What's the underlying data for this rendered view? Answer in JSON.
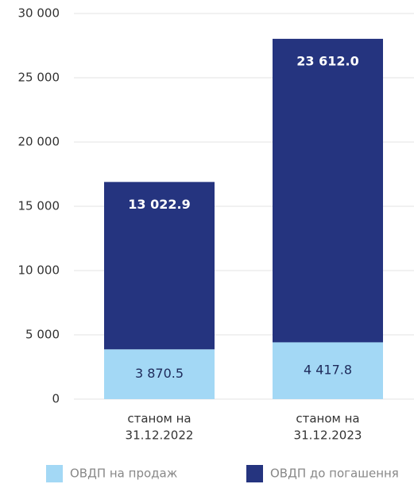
{
  "chart_data": {
    "type": "stacked_bar",
    "categories": [
      [
        "станом на",
        "31.12.2022"
      ],
      [
        "станом на",
        "31.12.2023"
      ]
    ],
    "series": [
      {
        "name": "ОВДП на продаж",
        "color": "#a3d8f5",
        "values": [
          3870.5,
          4417.8
        ],
        "value_labels": [
          "3 870.5",
          "4 417.8"
        ]
      },
      {
        "name": "ОВДП до погашення",
        "color": "#25347f",
        "values": [
          13022.9,
          23612.0
        ],
        "value_labels": [
          "13 022.9",
          "23 612.0"
        ]
      }
    ],
    "ylim": [
      0,
      30000
    ],
    "yticks": [
      0,
      {
        "value": 5000,
        "label": "5 000"
      },
      {
        "value": 10000,
        "label": "10 000"
      },
      {
        "value": 15000,
        "label": "15 000"
      },
      {
        "value": 20000,
        "label": "20 000"
      },
      {
        "value": 25000,
        "label": "25 000"
      },
      {
        "value": 30000,
        "label": "30 000"
      }
    ],
    "grid": true,
    "legend": "bottom"
  }
}
